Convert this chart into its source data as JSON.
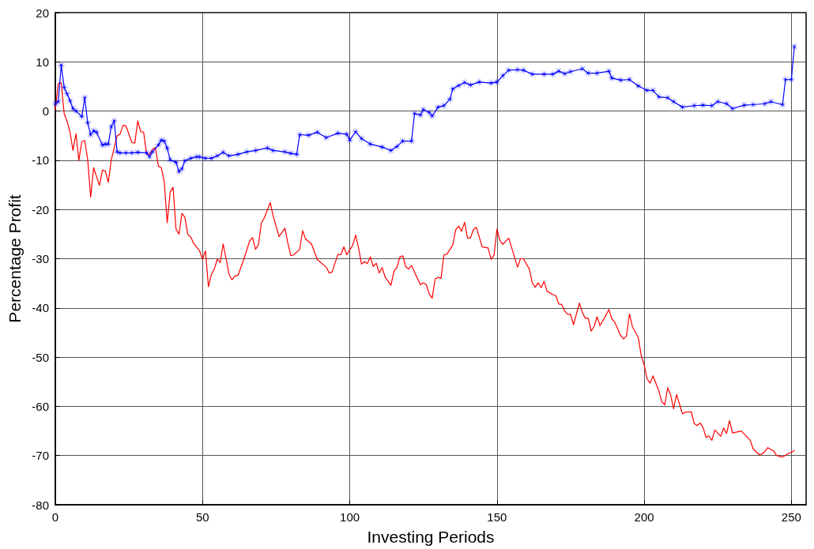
{
  "chart_data": {
    "type": "line",
    "xlabel": "Investing Periods",
    "ylabel": "Percentage Profit",
    "xlim": [
      0,
      255
    ],
    "xticks": [
      0,
      50,
      100,
      150,
      200,
      250
    ],
    "ylim": [
      -80,
      20
    ],
    "yticks": [
      -80,
      -70,
      -60,
      -50,
      -40,
      -30,
      -20,
      -10,
      0,
      10,
      20
    ],
    "grid": true,
    "series": [
      {
        "color": "#ff0000",
        "marker": "none",
        "x": [
          0,
          1,
          2,
          3,
          4,
          5,
          6,
          7,
          8,
          9,
          10,
          11,
          12,
          13,
          14,
          15,
          16,
          17,
          18,
          19,
          21,
          22,
          23,
          24,
          26,
          27,
          28,
          29,
          30,
          31,
          32,
          33,
          34,
          35,
          36,
          37,
          38,
          39,
          40,
          41,
          42,
          43,
          44,
          45,
          46,
          47,
          49,
          50,
          51,
          52,
          53,
          54,
          55,
          56,
          57,
          58,
          59,
          60,
          61,
          62,
          64,
          66,
          67,
          68,
          69,
          70,
          71,
          73,
          74,
          76,
          78,
          79,
          80,
          81,
          83,
          84,
          85,
          87,
          89,
          92,
          93,
          94,
          96,
          97,
          98,
          99,
          101,
          102,
          103,
          104,
          105,
          106,
          107,
          108,
          109,
          110,
          111,
          112,
          114,
          115,
          116,
          117,
          118,
          119,
          120,
          121,
          124,
          125,
          126,
          127,
          128,
          129,
          130,
          131,
          132,
          133,
          135,
          136,
          137,
          138,
          139,
          140,
          141,
          142,
          143,
          145,
          147,
          148,
          149,
          150,
          151,
          152,
          154,
          157,
          158,
          159,
          161,
          162,
          163,
          164,
          165,
          166,
          167,
          169,
          170,
          171,
          172,
          173,
          174,
          175,
          176,
          178,
          179,
          180,
          181,
          182,
          183,
          184,
          185,
          187,
          188,
          189,
          190,
          192,
          193,
          194,
          195,
          196,
          198,
          199,
          200,
          201,
          202,
          203,
          205,
          206,
          207,
          208,
          209,
          210,
          211,
          213,
          214,
          216,
          217,
          218,
          219,
          220,
          221,
          222,
          223,
          224,
          226,
          227,
          228,
          229,
          230,
          233,
          236,
          237,
          239,
          240,
          241,
          242,
          244,
          245,
          247,
          249,
          251
        ],
        "values": [
          0.3,
          5.6,
          5.8,
          -0.5,
          -2.1,
          -4.3,
          -8.0,
          -4.6,
          -10.0,
          -6.2,
          -6.0,
          -9.9,
          -17.5,
          -11.5,
          -13.3,
          -15.1,
          -12.0,
          -12.2,
          -14.5,
          -9.9,
          -5.0,
          -4.7,
          -2.9,
          -3.0,
          -6.4,
          -6.5,
          -2.0,
          -4.2,
          -4.3,
          -8.8,
          -8.8,
          -7.8,
          -7.4,
          -11.2,
          -11.5,
          -14.4,
          -22.7,
          -16.5,
          -15.5,
          -24.0,
          -25.0,
          -20.8,
          -21.6,
          -25.1,
          -25.6,
          -26.9,
          -28.4,
          -30.1,
          -28.4,
          -35.7,
          -33.2,
          -32.1,
          -30.1,
          -30.8,
          -27.0,
          -30.0,
          -33.2,
          -34.3,
          -33.5,
          -33.4,
          -30.2,
          -26.4,
          -25.7,
          -28.1,
          -27.1,
          -22.7,
          -21.7,
          -18.6,
          -21.4,
          -25.5,
          -23.8,
          -26.9,
          -29.4,
          -29.2,
          -28.1,
          -24.3,
          -26.0,
          -27.0,
          -30.2,
          -31.7,
          -32.9,
          -32.7,
          -29.1,
          -29.2,
          -27.6,
          -29.2,
          -27.3,
          -25.2,
          -27.8,
          -31.1,
          -30.6,
          -31.0,
          -29.6,
          -31.6,
          -30.9,
          -32.9,
          -31.8,
          -33.7,
          -35.4,
          -32.6,
          -31.8,
          -29.7,
          -29.4,
          -31.6,
          -32.1,
          -31.4,
          -35.3,
          -34.9,
          -35.3,
          -37.2,
          -38.0,
          -34.1,
          -33.8,
          -34.0,
          -29.2,
          -29.1,
          -27.2,
          -24.1,
          -23.4,
          -24.4,
          -22.6,
          -25.8,
          -25.8,
          -24.1,
          -23.6,
          -27.6,
          -27.8,
          -30.1,
          -29.3,
          -24.0,
          -26.3,
          -27.1,
          -25.8,
          -31.7,
          -30.0,
          -30.0,
          -32.1,
          -34.9,
          -35.8,
          -34.9,
          -35.9,
          -34.6,
          -36.6,
          -37.3,
          -37.5,
          -39.2,
          -39.3,
          -40.6,
          -41.3,
          -41.3,
          -43.4,
          -39.0,
          -40.9,
          -42.1,
          -42.1,
          -44.7,
          -43.8,
          -41.8,
          -43.6,
          -41.5,
          -40.3,
          -42.2,
          -42.9,
          -45.6,
          -46.3,
          -45.7,
          -41.2,
          -43.8,
          -46.0,
          -49.7,
          -51.6,
          -54.4,
          -55.3,
          -53.8,
          -56.9,
          -59.1,
          -59.7,
          -56.2,
          -57.7,
          -60.5,
          -57.6,
          -61.5,
          -61.2,
          -61.1,
          -63.5,
          -63.9,
          -63.4,
          -64.3,
          -66.3,
          -66.0,
          -66.9,
          -64.8,
          -66.1,
          -64.4,
          -65.5,
          -62.9,
          -65.4,
          -65.0,
          -66.9,
          -68.6,
          -69.8,
          -69.7,
          -69.2,
          -68.4,
          -69.1,
          -70.0,
          -70.3,
          -69.6,
          -69.0
        ]
      },
      {
        "color": "#0000ff",
        "marker": "star",
        "x": [
          0,
          1,
          2,
          3,
          4,
          5,
          6,
          7,
          9,
          10,
          11,
          12,
          13,
          14,
          16,
          17,
          18,
          19,
          20,
          21,
          22,
          24,
          26,
          28,
          31,
          32,
          33,
          35,
          36,
          37,
          38,
          39,
          41,
          42,
          43,
          44,
          46,
          48,
          49,
          51,
          53,
          55,
          57,
          59,
          62,
          65,
          68,
          72,
          74,
          78,
          80,
          82,
          83,
          86,
          89,
          92,
          96,
          99,
          100,
          102,
          104,
          107,
          111,
          114,
          116,
          118,
          121,
          122,
          124,
          125,
          127,
          128,
          130,
          132,
          134,
          135,
          137,
          139,
          141,
          144,
          148,
          150,
          152,
          154,
          157,
          159,
          162,
          166,
          169,
          171,
          173,
          175,
          179,
          181,
          184,
          188,
          189,
          192,
          195,
          198,
          201,
          203,
          205,
          208,
          210,
          213,
          217,
          220,
          223,
          225,
          228,
          230,
          234,
          237,
          241,
          243,
          247,
          248,
          250,
          251
        ],
        "values": [
          1.5,
          1.9,
          9.3,
          4.8,
          3.5,
          2.1,
          0.5,
          0.0,
          -1.1,
          2.7,
          -2.4,
          -4.8,
          -4.0,
          -4.3,
          -6.9,
          -6.7,
          -6.7,
          -3.2,
          -2.0,
          -8.3,
          -8.5,
          -8.5,
          -8.5,
          -8.4,
          -8.5,
          -9.3,
          -8.3,
          -6.9,
          -5.9,
          -6.1,
          -7.5,
          -9.9,
          -10.4,
          -12.3,
          -11.7,
          -10.1,
          -9.6,
          -9.3,
          -9.3,
          -9.6,
          -9.6,
          -9.1,
          -8.4,
          -9.1,
          -8.8,
          -8.3,
          -8.0,
          -7.5,
          -8.0,
          -8.3,
          -8.6,
          -8.8,
          -4.8,
          -4.9,
          -4.3,
          -5.4,
          -4.5,
          -4.7,
          -5.9,
          -4.2,
          -5.6,
          -6.7,
          -7.3,
          -8.0,
          -7.2,
          -6.1,
          -6.1,
          -0.5,
          -0.8,
          0.3,
          -0.3,
          -1.0,
          0.8,
          1.1,
          2.4,
          4.5,
          5.2,
          5.8,
          5.3,
          5.9,
          5.7,
          5.9,
          7.2,
          8.3,
          8.4,
          8.3,
          7.5,
          7.5,
          7.5,
          8.1,
          7.6,
          8.0,
          8.6,
          7.7,
          7.7,
          8.1,
          6.7,
          6.3,
          6.4,
          5.1,
          4.2,
          4.2,
          2.9,
          2.7,
          1.9,
          0.8,
          1.1,
          1.2,
          1.1,
          1.9,
          1.5,
          0.5,
          1.2,
          1.3,
          1.5,
          1.9,
          1.3,
          6.4,
          6.4,
          13.1
        ]
      }
    ]
  }
}
